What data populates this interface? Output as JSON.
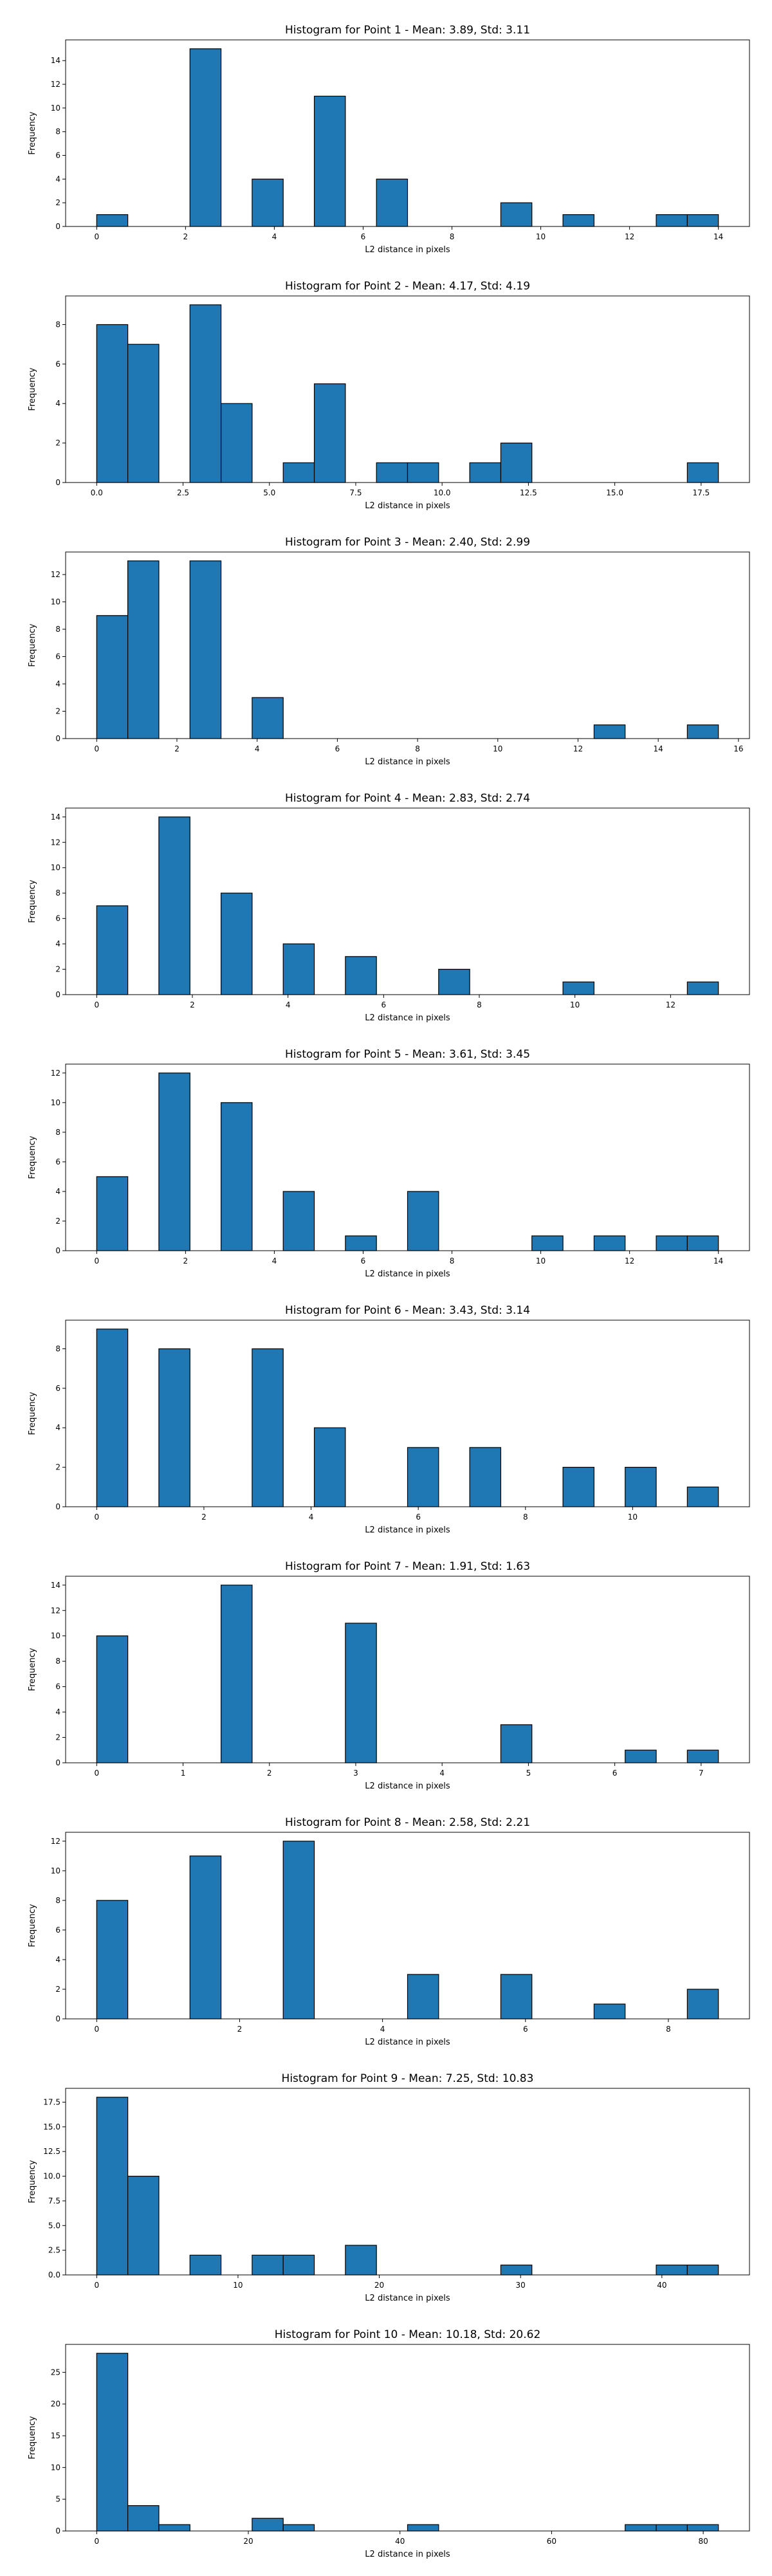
{
  "chart_data": [
    {
      "type": "bar",
      "title": "Histogram for Point 1 - Mean: 3.89, Std: 3.11",
      "xlabel": "L2 distance in pixels",
      "ylabel": "Frequency",
      "bin_start": 0,
      "bin_width": 0.7,
      "counts": [
        1,
        0,
        0,
        15,
        0,
        4,
        0,
        11,
        0,
        4,
        0,
        0,
        0,
        2,
        0,
        1,
        0,
        0,
        1,
        1
      ],
      "xlim": [
        -0.7,
        14.7
      ],
      "ylim": [
        0,
        15.75
      ],
      "xticks": [
        0,
        2,
        4,
        6,
        8,
        10,
        12,
        14
      ],
      "xtick_labels": [
        "0",
        "2",
        "4",
        "6",
        "8",
        "10",
        "12",
        "14"
      ],
      "yticks": [
        0,
        2,
        4,
        6,
        8,
        10,
        12,
        14
      ],
      "ytick_labels": [
        "0",
        "2",
        "4",
        "6",
        "8",
        "10",
        "12",
        "14"
      ],
      "bar_color": "#1f77b4",
      "grid": false
    },
    {
      "type": "bar",
      "title": "Histogram for Point 2 - Mean: 4.17, Std: 4.19",
      "xlabel": "L2 distance in pixels",
      "ylabel": "Frequency",
      "bin_start": 0,
      "bin_width": 0.9,
      "counts": [
        8,
        7,
        0,
        9,
        4,
        0,
        1,
        5,
        0,
        1,
        1,
        0,
        1,
        2,
        0,
        0,
        0,
        0,
        0,
        1
      ],
      "xlim": [
        -0.9,
        18.9
      ],
      "ylim": [
        0,
        9.45
      ],
      "xticks": [
        0,
        2.5,
        5,
        7.5,
        10,
        12.5,
        15,
        17.5
      ],
      "xtick_labels": [
        "0.0",
        "2.5",
        "5.0",
        "7.5",
        "10.0",
        "12.5",
        "15.0",
        "17.5"
      ],
      "yticks": [
        0,
        2,
        4,
        6,
        8
      ],
      "ytick_labels": [
        "0",
        "2",
        "4",
        "6",
        "8"
      ],
      "bar_color": "#1f77b4",
      "grid": false
    },
    {
      "type": "bar",
      "title": "Histogram for Point 3 - Mean: 2.40, Std: 2.99",
      "xlabel": "L2 distance in pixels",
      "ylabel": "Frequency",
      "bin_start": 0,
      "bin_width": 0.775,
      "counts": [
        9,
        13,
        0,
        13,
        0,
        3,
        0,
        0,
        0,
        0,
        0,
        0,
        0,
        0,
        0,
        0,
        1,
        0,
        0,
        1
      ],
      "xlim": [
        -0.775,
        16.275
      ],
      "ylim": [
        0,
        13.65
      ],
      "xticks": [
        0,
        2,
        4,
        6,
        8,
        10,
        12,
        14,
        16
      ],
      "xtick_labels": [
        "0",
        "2",
        "4",
        "6",
        "8",
        "10",
        "12",
        "14",
        "16"
      ],
      "yticks": [
        0,
        2,
        4,
        6,
        8,
        10,
        12
      ],
      "ytick_labels": [
        "0",
        "2",
        "4",
        "6",
        "8",
        "10",
        "12"
      ],
      "bar_color": "#1f77b4",
      "grid": false
    },
    {
      "type": "bar",
      "title": "Histogram for Point 4 - Mean: 2.83, Std: 2.74",
      "xlabel": "L2 distance in pixels",
      "ylabel": "Frequency",
      "bin_start": 0,
      "bin_width": 0.65,
      "counts": [
        7,
        0,
        14,
        0,
        8,
        0,
        4,
        0,
        3,
        0,
        0,
        2,
        0,
        0,
        0,
        1,
        0,
        0,
        0,
        1
      ],
      "xlim": [
        -0.65,
        13.65
      ],
      "ylim": [
        0,
        14.7
      ],
      "xticks": [
        0,
        2,
        4,
        6,
        8,
        10,
        12
      ],
      "xtick_labels": [
        "0",
        "2",
        "4",
        "6",
        "8",
        "10",
        "12"
      ],
      "yticks": [
        0,
        2,
        4,
        6,
        8,
        10,
        12,
        14
      ],
      "ytick_labels": [
        "0",
        "2",
        "4",
        "6",
        "8",
        "10",
        "12",
        "14"
      ],
      "bar_color": "#1f77b4",
      "grid": false
    },
    {
      "type": "bar",
      "title": "Histogram for Point 5 - Mean: 3.61, Std: 3.45",
      "xlabel": "L2 distance in pixels",
      "ylabel": "Frequency",
      "bin_start": 0,
      "bin_width": 0.7,
      "counts": [
        5,
        0,
        12,
        0,
        10,
        0,
        4,
        0,
        1,
        0,
        4,
        0,
        0,
        0,
        1,
        0,
        1,
        0,
        1,
        1
      ],
      "xlim": [
        -0.7,
        14.7
      ],
      "ylim": [
        0,
        12.6
      ],
      "xticks": [
        0,
        2,
        4,
        6,
        8,
        10,
        12,
        14
      ],
      "xtick_labels": [
        "0",
        "2",
        "4",
        "6",
        "8",
        "10",
        "12",
        "14"
      ],
      "yticks": [
        0,
        2,
        4,
        6,
        8,
        10,
        12
      ],
      "ytick_labels": [
        "0",
        "2",
        "4",
        "6",
        "8",
        "10",
        "12"
      ],
      "bar_color": "#1f77b4",
      "grid": false
    },
    {
      "type": "bar",
      "title": "Histogram for Point 6 - Mean: 3.43, Std: 3.14",
      "xlabel": "L2 distance in pixels",
      "ylabel": "Frequency",
      "bin_start": 0,
      "bin_width": 0.58,
      "counts": [
        9,
        0,
        8,
        0,
        0,
        8,
        0,
        4,
        0,
        0,
        3,
        0,
        3,
        0,
        0,
        2,
        0,
        2,
        0,
        1
      ],
      "xlim": [
        -0.58,
        12.18
      ],
      "ylim": [
        0,
        9.45
      ],
      "xticks": [
        0,
        2,
        4,
        6,
        8,
        10
      ],
      "xtick_labels": [
        "0",
        "2",
        "4",
        "6",
        "8",
        "10"
      ],
      "yticks": [
        0,
        2,
        4,
        6,
        8
      ],
      "ytick_labels": [
        "0",
        "2",
        "4",
        "6",
        "8"
      ],
      "bar_color": "#1f77b4",
      "grid": false
    },
    {
      "type": "bar",
      "title": "Histogram for Point 7 - Mean: 1.91, Std: 1.63",
      "xlabel": "L2 distance in pixels",
      "ylabel": "Frequency",
      "bin_start": 0,
      "bin_width": 0.36,
      "counts": [
        10,
        0,
        0,
        0,
        14,
        0,
        0,
        0,
        11,
        0,
        0,
        0,
        0,
        3,
        0,
        0,
        0,
        1,
        0,
        1
      ],
      "xlim": [
        -0.36,
        7.56
      ],
      "ylim": [
        0,
        14.7
      ],
      "xticks": [
        0,
        1,
        2,
        3,
        4,
        5,
        6,
        7
      ],
      "xtick_labels": [
        "0",
        "1",
        "2",
        "3",
        "4",
        "5",
        "6",
        "7"
      ],
      "yticks": [
        0,
        2,
        4,
        6,
        8,
        10,
        12,
        14
      ],
      "ytick_labels": [
        "0",
        "2",
        "4",
        "6",
        "8",
        "10",
        "12",
        "14"
      ],
      "bar_color": "#1f77b4",
      "grid": false
    },
    {
      "type": "bar",
      "title": "Histogram for Point 8 - Mean: 2.58, Std: 2.21",
      "xlabel": "L2 distance in pixels",
      "ylabel": "Frequency",
      "bin_start": 0,
      "bin_width": 0.435,
      "counts": [
        8,
        0,
        0,
        11,
        0,
        0,
        12,
        0,
        0,
        0,
        3,
        0,
        0,
        3,
        0,
        0,
        1,
        0,
        0,
        2
      ],
      "xlim": [
        -0.435,
        9.135
      ],
      "ylim": [
        0,
        12.6
      ],
      "xticks": [
        0,
        2,
        4,
        6,
        8
      ],
      "xtick_labels": [
        "0",
        "2",
        "4",
        "6",
        "8"
      ],
      "yticks": [
        0,
        2,
        4,
        6,
        8,
        10,
        12
      ],
      "ytick_labels": [
        "0",
        "2",
        "4",
        "6",
        "8",
        "10",
        "12"
      ],
      "bar_color": "#1f77b4",
      "grid": false
    },
    {
      "type": "bar",
      "title": "Histogram for Point 9 - Mean: 7.25, Std: 10.83",
      "xlabel": "L2 distance in pixels",
      "ylabel": "Frequency",
      "bin_start": 0,
      "bin_width": 2.2,
      "counts": [
        18,
        10,
        0,
        2,
        0,
        2,
        2,
        0,
        3,
        0,
        0,
        0,
        0,
        1,
        0,
        0,
        0,
        0,
        1,
        1
      ],
      "xlim": [
        -2.2,
        46.2
      ],
      "ylim": [
        0,
        18.9
      ],
      "xticks": [
        0,
        10,
        20,
        30,
        40
      ],
      "xtick_labels": [
        "0",
        "10",
        "20",
        "30",
        "40"
      ],
      "yticks": [
        0,
        2.5,
        5,
        7.5,
        10,
        12.5,
        15,
        17.5
      ],
      "ytick_labels": [
        "0.0",
        "2.5",
        "5.0",
        "7.5",
        "10.0",
        "12.5",
        "15.0",
        "17.5"
      ],
      "bar_color": "#1f77b4",
      "grid": false
    },
    {
      "type": "bar",
      "title": "Histogram for Point 10 - Mean: 10.18, Std: 20.62",
      "xlabel": "L2 distance in pixels",
      "ylabel": "Frequency",
      "bin_start": 0,
      "bin_width": 4.1,
      "counts": [
        28,
        4,
        1,
        0,
        0,
        2,
        1,
        0,
        0,
        0,
        1,
        0,
        0,
        0,
        0,
        0,
        0,
        1,
        1,
        1
      ],
      "xlim": [
        -4.1,
        86.1
      ],
      "ylim": [
        0,
        29.4
      ],
      "xticks": [
        0,
        20,
        40,
        60,
        80
      ],
      "xtick_labels": [
        "0",
        "20",
        "40",
        "60",
        "80"
      ],
      "yticks": [
        0,
        5,
        10,
        15,
        20,
        25
      ],
      "ytick_labels": [
        "0",
        "5",
        "10",
        "15",
        "20",
        "25"
      ],
      "bar_color": "#1f77b4",
      "grid": false
    }
  ]
}
